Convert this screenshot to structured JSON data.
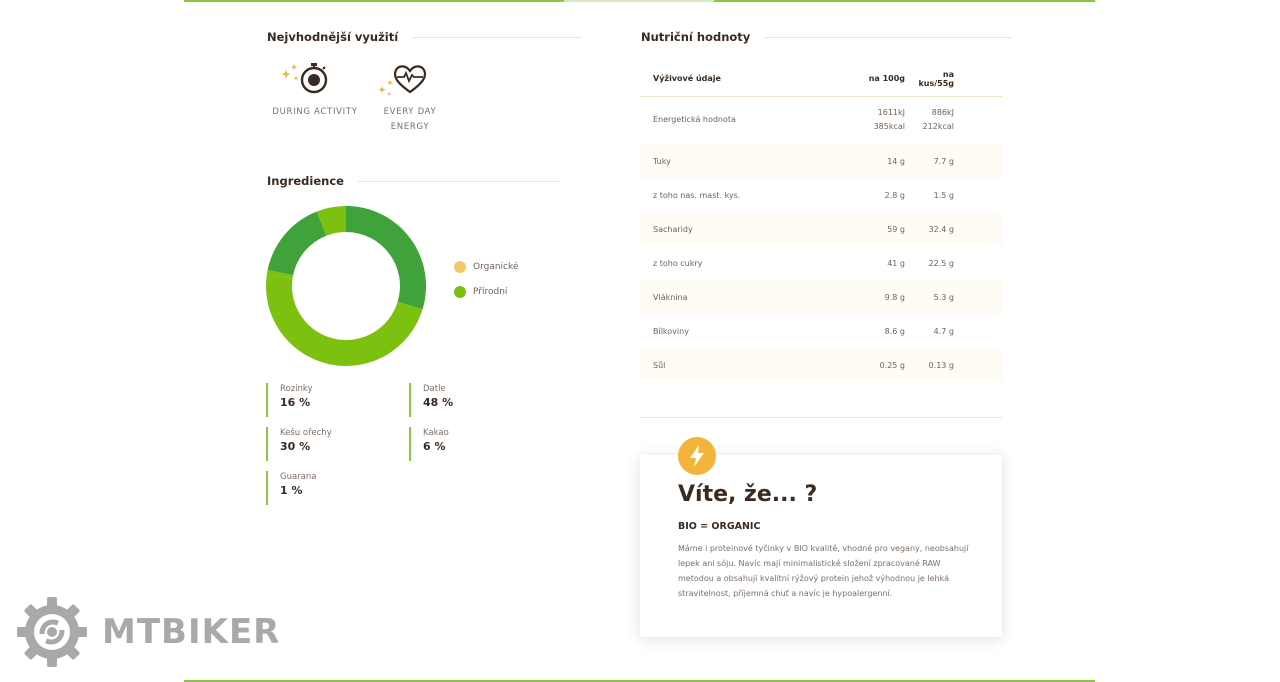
{
  "usage": {
    "title": "Nejvhodnější využití",
    "items": [
      {
        "label": "DURING ACTIVITY",
        "icon": "stopwatch-icon"
      },
      {
        "label_line1": "EVERY DAY",
        "label_line2": "ENERGY",
        "icon": "heart-pulse-icon"
      }
    ]
  },
  "ingredients": {
    "title": "Ingredience",
    "legend": [
      {
        "label": "Organické",
        "color": "#f5c868"
      },
      {
        "label": "Přírodní",
        "color": "#7cc10f"
      }
    ],
    "items": [
      {
        "name": "Rozinky",
        "value": "16 %"
      },
      {
        "name": "Datle",
        "value": "48 %"
      },
      {
        "name": "Kešu ořechy",
        "value": "30 %"
      },
      {
        "name": "Kakao",
        "value": "6 %"
      },
      {
        "name": "Guarana",
        "value": "1 %"
      }
    ]
  },
  "chart_data": {
    "type": "pie",
    "categories": [
      "Rozinky",
      "Datle",
      "Kešu ořechy",
      "Kakao",
      "Guarana"
    ],
    "values": [
      16,
      48,
      30,
      6,
      1
    ],
    "colors": [
      "#3fa23a",
      "#7cc10f",
      "#3fa23a",
      "#7cc10f",
      "#7cc10f"
    ],
    "donut": true,
    "legend_position": "right"
  },
  "nutrition": {
    "title": "Nutriční hodnoty",
    "headers": [
      "Výživové údaje",
      "na 100g",
      "na kus/55g"
    ],
    "energy": {
      "label": "Energetická hodnota",
      "c1a": "1611kJ",
      "c1b": "385kcal",
      "c2a": "886kJ",
      "c2b": "212kcal"
    },
    "rows": [
      {
        "label": "Tuky",
        "v1": "14 g",
        "v2": "7.7 g"
      },
      {
        "label": "z toho nas. mast. kys.",
        "v1": "2.8 g",
        "v2": "1.5 g"
      },
      {
        "label": "Sacharidy",
        "v1": "59 g",
        "v2": "32.4 g"
      },
      {
        "label": "z toho cukry",
        "v1": "41 g",
        "v2": "22.5 g"
      },
      {
        "label": "Vláknina",
        "v1": "9.8 g",
        "v2": "5.3 g"
      },
      {
        "label": "Bílkoviny",
        "v1": "8.6 g",
        "v2": "4.7 g"
      },
      {
        "label": "Sůl",
        "v1": "0.25 g",
        "v2": "0.13 g"
      }
    ]
  },
  "didyouknow": {
    "title": "Víte, že... ?",
    "subtitle": "BIO = ORGANIC",
    "body": "Máme i proteinové tyčinky v BIO kvalitě, vhodné pro vegany, neobsahují lepek ani sóju. Navíc mají minimalistické složení zpracované RAW metodou a obsahují kvalitní rýžový protein jehož výhodnou je lehká stravitelnost, příjemná chuť a navíc je hypoalergenní.",
    "icon": "lightning-icon"
  },
  "watermark": {
    "text": "MTBIKER",
    "icon": "gear-logo-icon"
  }
}
